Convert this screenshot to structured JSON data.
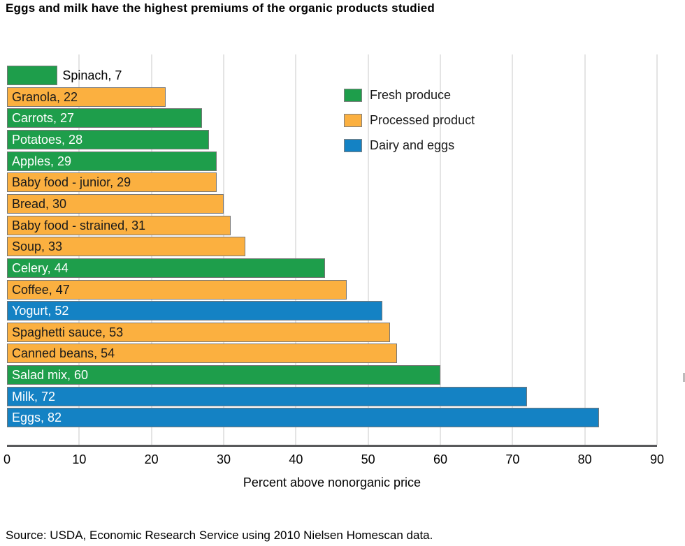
{
  "title": "Eggs and milk have the highest premiums of the organic products studied",
  "source": "Source: USDA, Economic Research Service using 2010 Nielsen Homescan data.",
  "colors": {
    "fresh_produce": "#1e9e4b",
    "processed_product": "#fbb040",
    "dairy_and_eggs": "#1482c4",
    "bar_border": "#777777",
    "gridline": "#e4e4e4",
    "axis_line": "#58595b",
    "label_dark": "#1a1a1a",
    "label_light": "#ffffff"
  },
  "chart_data": {
    "type": "bar",
    "orientation": "horizontal",
    "title": "Eggs and milk have the highest premiums of the organic products studied",
    "xlabel": "Percent above nonorganic price",
    "ylabel": "",
    "xlim": [
      0,
      90
    ],
    "xticks": [
      0,
      10,
      20,
      30,
      40,
      50,
      60,
      70,
      80,
      90
    ],
    "grid": true,
    "legend_position": "upper-right-inside",
    "legend": [
      {
        "label": "Fresh produce",
        "category": "fresh_produce"
      },
      {
        "label": "Processed product",
        "category": "processed_product"
      },
      {
        "label": "Dairy and eggs",
        "category": "dairy_and_eggs"
      }
    ],
    "bars": [
      {
        "label": "Spinach",
        "value": 7,
        "category": "fresh_produce",
        "label_text": "Spinach, 7",
        "label_placement": "outside",
        "label_color": "#000000"
      },
      {
        "label": "Granola",
        "value": 22,
        "category": "processed_product",
        "label_text": "Granola, 22",
        "label_placement": "inside",
        "label_color": "#1a1a1a"
      },
      {
        "label": "Carrots",
        "value": 27,
        "category": "fresh_produce",
        "label_text": "Carrots, 27",
        "label_placement": "inside",
        "label_color": "#ffffff"
      },
      {
        "label": "Potatoes",
        "value": 28,
        "category": "fresh_produce",
        "label_text": "Potatoes, 28",
        "label_placement": "inside",
        "label_color": "#ffffff"
      },
      {
        "label": "Apples",
        "value": 29,
        "category": "fresh_produce",
        "label_text": "Apples, 29",
        "label_placement": "inside",
        "label_color": "#ffffff"
      },
      {
        "label": "Baby food - junior",
        "value": 29,
        "category": "processed_product",
        "label_text": "Baby food - junior, 29",
        "label_placement": "inside",
        "label_color": "#1a1a1a"
      },
      {
        "label": "Bread",
        "value": 30,
        "category": "processed_product",
        "label_text": "Bread, 30",
        "label_placement": "inside",
        "label_color": "#1a1a1a"
      },
      {
        "label": "Baby food - strained",
        "value": 31,
        "category": "processed_product",
        "label_text": "Baby food - strained, 31",
        "label_placement": "inside",
        "label_color": "#1a1a1a"
      },
      {
        "label": "Soup",
        "value": 33,
        "category": "processed_product",
        "label_text": "Soup, 33",
        "label_placement": "inside",
        "label_color": "#1a1a1a"
      },
      {
        "label": "Celery",
        "value": 44,
        "category": "fresh_produce",
        "label_text": "Celery, 44",
        "label_placement": "inside",
        "label_color": "#ffffff"
      },
      {
        "label": "Coffee",
        "value": 47,
        "category": "processed_product",
        "label_text": "Coffee, 47",
        "label_placement": "inside",
        "label_color": "#1a1a1a"
      },
      {
        "label": "Yogurt",
        "value": 52,
        "category": "dairy_and_eggs",
        "label_text": "Yogurt, 52",
        "label_placement": "inside",
        "label_color": "#ffffff"
      },
      {
        "label": "Spaghetti sauce",
        "value": 53,
        "category": "processed_product",
        "label_text": "Spaghetti sauce, 53",
        "label_placement": "inside",
        "label_color": "#1a1a1a"
      },
      {
        "label": "Canned beans",
        "value": 54,
        "category": "processed_product",
        "label_text": "Canned beans, 54",
        "label_placement": "inside",
        "label_color": "#1a1a1a"
      },
      {
        "label": "Salad mix",
        "value": 60,
        "category": "fresh_produce",
        "label_text": "Salad mix, 60",
        "label_placement": "inside",
        "label_color": "#ffffff"
      },
      {
        "label": "Milk",
        "value": 72,
        "category": "dairy_and_eggs",
        "label_text": "Milk, 72",
        "label_placement": "inside",
        "label_color": "#ffffff"
      },
      {
        "label": "Eggs",
        "value": 82,
        "category": "dairy_and_eggs",
        "label_text": "Eggs, 82",
        "label_placement": "inside",
        "label_color": "#ffffff"
      }
    ]
  }
}
